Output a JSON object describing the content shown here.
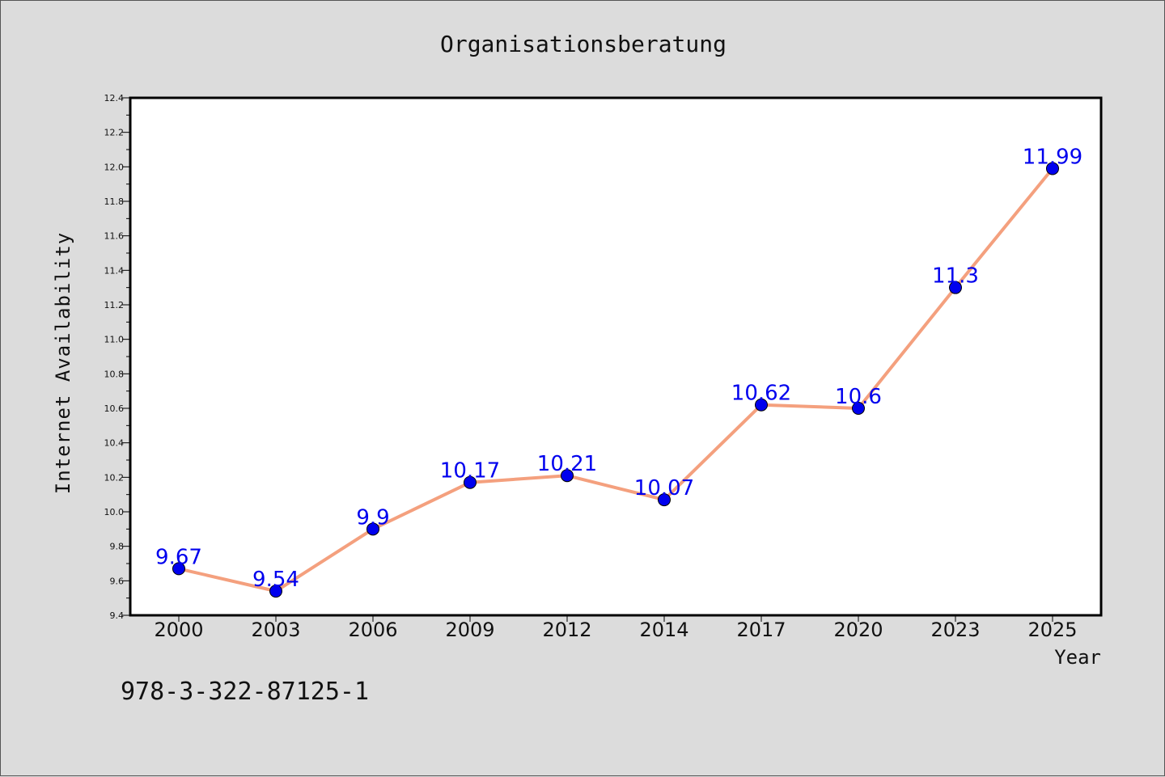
{
  "chart_data": {
    "type": "line",
    "title": "Organisationsberatung",
    "xlabel": "Year",
    "ylabel": "Internet Availability",
    "categories": [
      "2000",
      "2003",
      "2006",
      "2009",
      "2012",
      "2014",
      "2017",
      "2020",
      "2023",
      "2025"
    ],
    "series": [
      {
        "values": [
          9.67,
          9.54,
          9.9,
          10.17,
          10.21,
          10.07,
          10.62,
          10.6,
          11.3,
          11.99
        ],
        "labels": [
          "9.67",
          "9.54",
          "9.9",
          "10.17",
          "10.21",
          "10.07",
          "10.62",
          "10.6",
          "11.3",
          "11.99"
        ],
        "line_color": "#f4a07e",
        "marker_color": "#0000ee",
        "label_color": "#0000ee"
      }
    ],
    "ylim": [
      9.4,
      12.4
    ],
    "yticks": [
      "9.4",
      "9.6",
      "9.8",
      "10.0",
      "10.2",
      "10.4",
      "10.6",
      "10.8",
      "11.0",
      "11.2",
      "11.4",
      "11.6",
      "11.8",
      "12.0",
      "12.2",
      "12.4"
    ],
    "grid": false,
    "legend": "none"
  },
  "footnote": "978-3-322-87125-1",
  "colors": {
    "background": "#dcdcdc",
    "plot_background": "#ffffff",
    "axis": "#000000"
  }
}
